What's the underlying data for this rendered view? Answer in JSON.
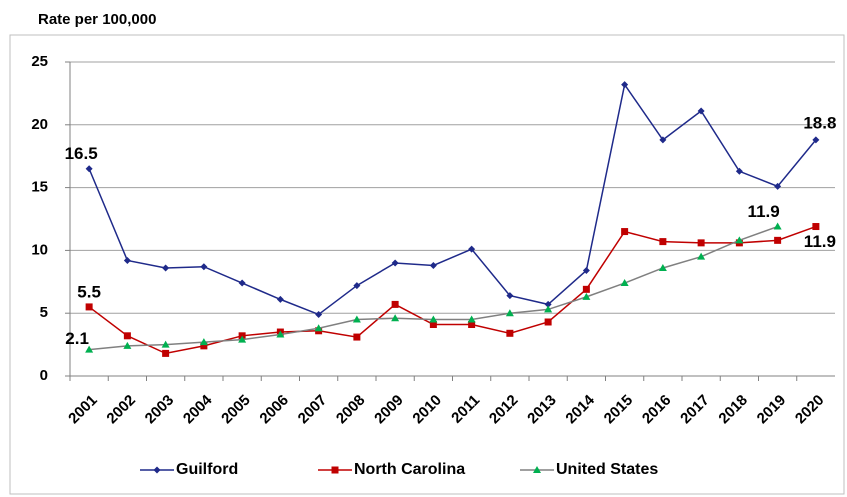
{
  "chart_data": {
    "type": "line",
    "ylabel": "Rate per 100,000",
    "categories": [
      "2001",
      "2002",
      "2003",
      "2004",
      "2005",
      "2006",
      "2007",
      "2008",
      "2009",
      "2010",
      "2011",
      "2012",
      "2013",
      "2014",
      "2015",
      "2016",
      "2017",
      "2018",
      "2019",
      "2020"
    ],
    "series": [
      {
        "name": "Guilford",
        "color": "#1f2a8a",
        "marker": "diamond",
        "values": [
          16.5,
          9.2,
          8.6,
          8.7,
          7.4,
          6.1,
          4.9,
          7.2,
          9.0,
          8.8,
          10.1,
          6.4,
          5.7,
          8.4,
          23.2,
          18.8,
          21.1,
          16.3,
          15.1,
          18.8
        ],
        "value_labels": [
          "16.5",
          null,
          null,
          null,
          null,
          null,
          null,
          null,
          null,
          null,
          null,
          null,
          null,
          null,
          null,
          null,
          null,
          null,
          null,
          "18.8"
        ]
      },
      {
        "name": "North Carolina",
        "color": "#c00000",
        "marker": "square",
        "values": [
          5.5,
          3.2,
          1.8,
          2.4,
          3.2,
          3.5,
          3.6,
          3.1,
          5.7,
          4.1,
          4.1,
          3.4,
          4.3,
          6.9,
          11.5,
          10.7,
          10.6,
          10.6,
          10.8,
          11.9
        ],
        "value_labels": [
          "5.5",
          null,
          null,
          null,
          null,
          null,
          null,
          null,
          null,
          null,
          null,
          null,
          null,
          null,
          null,
          null,
          null,
          null,
          null,
          "11.9"
        ]
      },
      {
        "name": "United States",
        "color": "#00b050",
        "line_color": "#808080",
        "marker": "triangle",
        "values": [
          2.1,
          2.4,
          2.5,
          2.7,
          2.9,
          3.3,
          3.8,
          4.5,
          4.6,
          4.5,
          4.5,
          5.0,
          5.3,
          6.3,
          7.4,
          8.6,
          9.5,
          10.8,
          11.9,
          null
        ],
        "value_labels": [
          "2.1",
          null,
          null,
          null,
          null,
          null,
          null,
          null,
          null,
          null,
          null,
          null,
          null,
          null,
          null,
          null,
          null,
          null,
          "11.9",
          null
        ]
      }
    ],
    "ylim": [
      0,
      25
    ],
    "yticks": [
      0,
      5,
      10,
      15,
      20,
      25
    ],
    "grid": true,
    "legend": "bottom"
  }
}
